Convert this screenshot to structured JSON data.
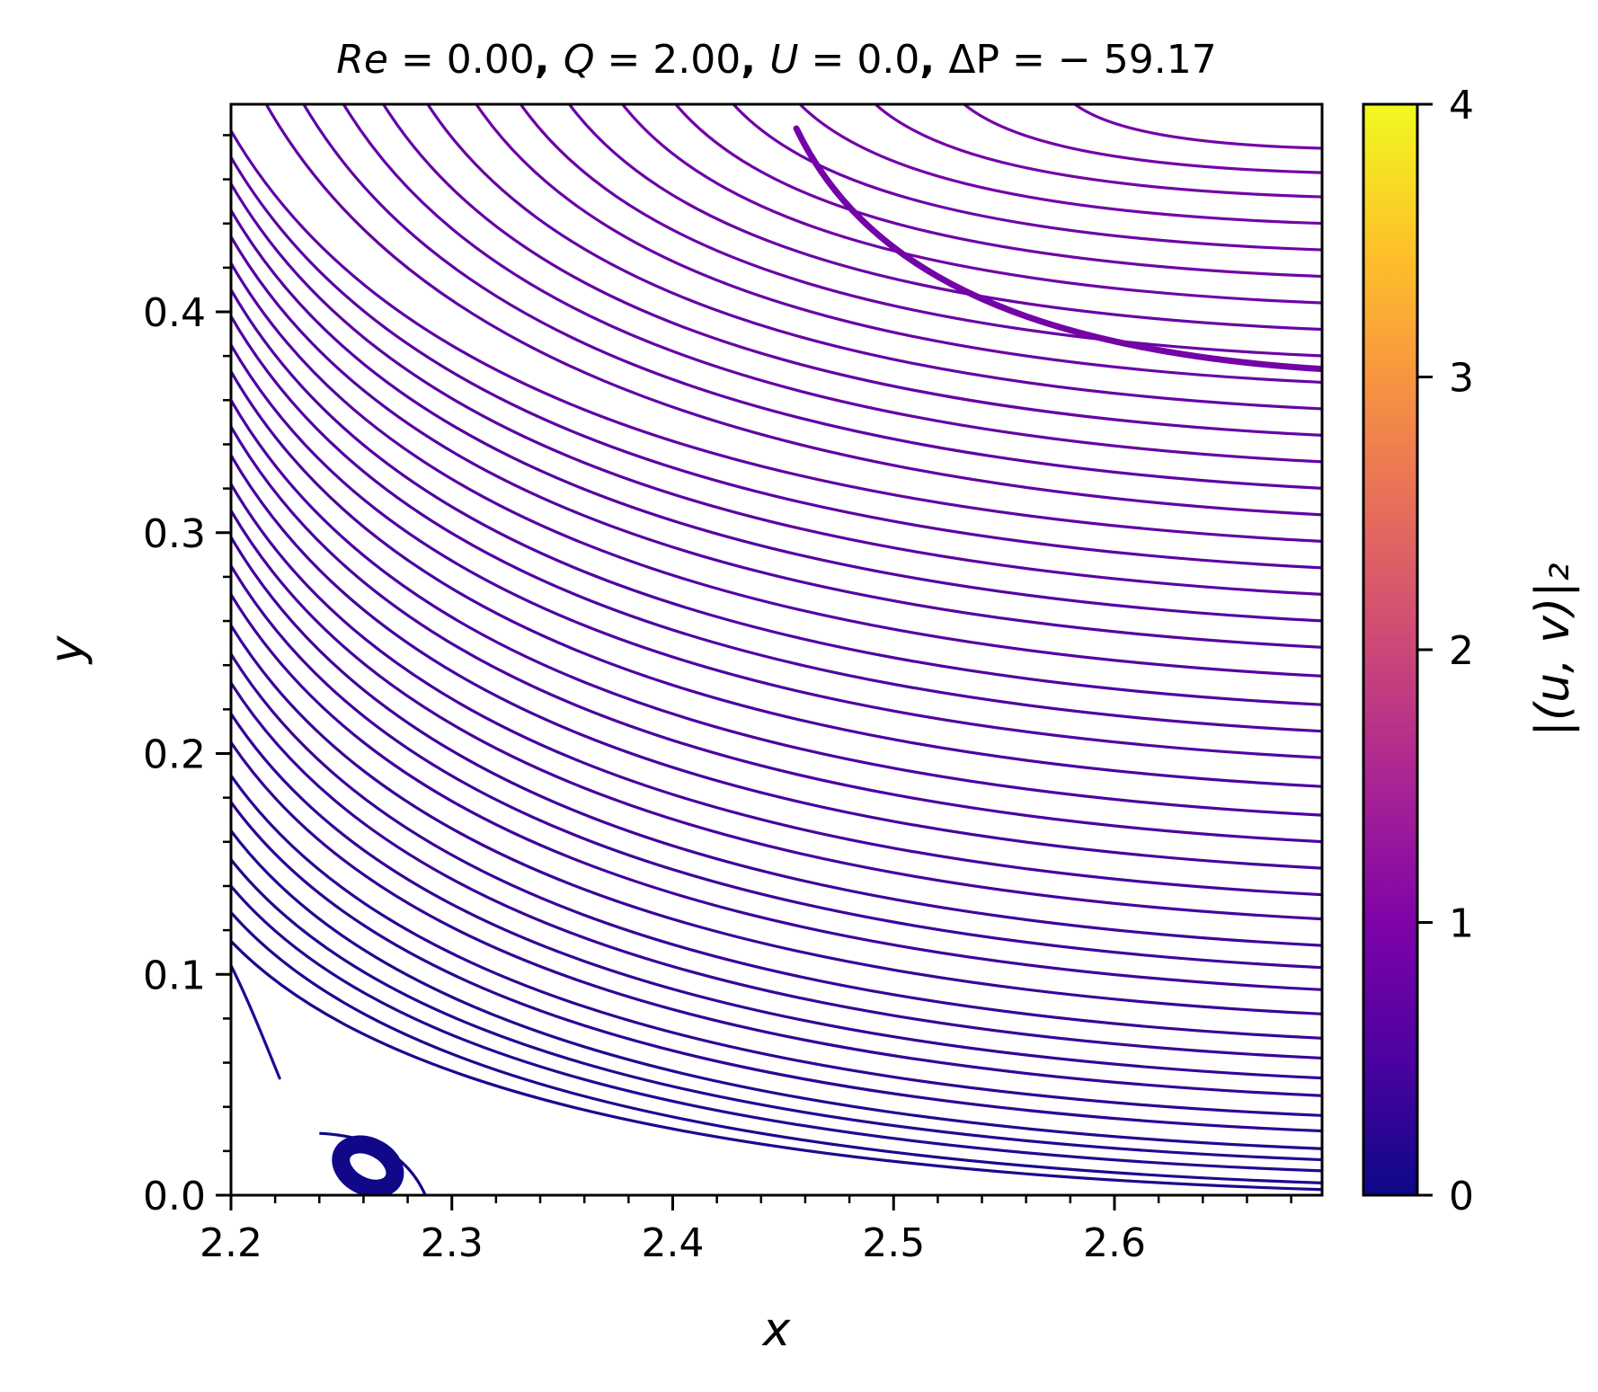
{
  "chart_data": {
    "type": "streamline",
    "title": "Re = 0.00, Q = 2.00, U = 0.0, ΔP = − 59.17",
    "title_parts": [
      {
        "text": "Re",
        "italic": true
      },
      {
        "text": " = 0.00",
        "italic": false
      },
      {
        "text": ", ",
        "italic": false,
        "bold": true
      },
      {
        "text": "Q",
        "italic": true
      },
      {
        "text": " = 2.00",
        "italic": false
      },
      {
        "text": ", ",
        "italic": false,
        "bold": true
      },
      {
        "text": "U",
        "italic": true
      },
      {
        "text": " = 0.0",
        "italic": false
      },
      {
        "text": ", ",
        "italic": false,
        "bold": true
      },
      {
        "text": "ΔP",
        "italic": false
      },
      {
        "text": " = − 59.17",
        "italic": false
      }
    ],
    "xlabel": "x",
    "ylabel": "y",
    "xlim": [
      2.2,
      2.694
    ],
    "ylim": [
      0.0,
      0.494
    ],
    "xticks": [
      2.2,
      2.3,
      2.4,
      2.5,
      2.6
    ],
    "xtick_labels": [
      "2.2",
      "2.3",
      "2.4",
      "2.5",
      "2.6"
    ],
    "yticks": [
      0.0,
      0.1,
      0.2,
      0.3,
      0.4
    ],
    "ytick_labels": [
      "0.0",
      "0.1",
      "0.2",
      "0.3",
      "0.4"
    ],
    "x_minor_step": 0.02,
    "y_minor_step": 0.02,
    "grid": false,
    "colormap": "plasma",
    "colorbar": {
      "label": "|(u, v)|₂",
      "min": 0,
      "max": 4,
      "ticks": [
        0,
        1,
        2,
        3,
        4
      ],
      "tick_labels": [
        "0",
        "1",
        "2",
        "3",
        "4"
      ]
    },
    "streamlines": [
      {
        "y_left": 0.104,
        "end_x": 2.222,
        "end_y": 0.053,
        "speed": 0.2
      },
      {
        "y_left": 0.115,
        "y_right": 0.0025,
        "speed": 0.15
      },
      {
        "y_left": 0.128,
        "y_right": 0.0055,
        "speed": 0.15
      },
      {
        "y_left": 0.14,
        "y_right": 0.011,
        "speed": 0.2
      },
      {
        "y_left": 0.152,
        "y_right": 0.016,
        "speed": 0.2
      },
      {
        "y_left": 0.165,
        "y_right": 0.021,
        "speed": 0.2
      },
      {
        "y_left": 0.178,
        "y_right": 0.029,
        "speed": 0.25
      },
      {
        "y_left": 0.19,
        "y_right": 0.036,
        "speed": 0.25
      },
      {
        "y_left": 0.205,
        "y_right": 0.045,
        "speed": 0.3
      },
      {
        "y_left": 0.218,
        "y_right": 0.053,
        "speed": 0.3
      },
      {
        "y_left": 0.232,
        "y_right": 0.062,
        "speed": 0.35
      },
      {
        "y_left": 0.245,
        "y_right": 0.071,
        "speed": 0.35
      },
      {
        "y_left": 0.258,
        "y_right": 0.082,
        "speed": 0.35
      },
      {
        "y_left": 0.272,
        "y_right": 0.093,
        "speed": 0.4
      },
      {
        "y_left": 0.285,
        "y_right": 0.103,
        "speed": 0.4
      },
      {
        "y_left": 0.298,
        "y_right": 0.113,
        "speed": 0.4
      },
      {
        "y_left": 0.31,
        "y_right": 0.125,
        "speed": 0.45
      },
      {
        "y_left": 0.322,
        "y_right": 0.136,
        "speed": 0.45
      },
      {
        "y_left": 0.335,
        "y_right": 0.148,
        "speed": 0.45
      },
      {
        "y_left": 0.348,
        "y_right": 0.16,
        "speed": 0.5
      },
      {
        "y_left": 0.36,
        "y_right": 0.172,
        "speed": 0.5
      },
      {
        "y_left": 0.373,
        "y_right": 0.185,
        "speed": 0.5
      },
      {
        "y_left": 0.385,
        "y_right": 0.198,
        "speed": 0.55
      },
      {
        "y_left": 0.398,
        "y_right": 0.21,
        "speed": 0.55
      },
      {
        "y_left": 0.41,
        "y_right": 0.222,
        "speed": 0.55
      },
      {
        "y_left": 0.422,
        "y_right": 0.235,
        "speed": 0.6
      },
      {
        "y_left": 0.434,
        "y_right": 0.248,
        "speed": 0.6
      },
      {
        "y_left": 0.446,
        "y_right": 0.26,
        "speed": 0.6
      },
      {
        "y_left": 0.458,
        "y_right": 0.272,
        "speed": 0.65
      },
      {
        "y_left": 0.47,
        "y_right": 0.284,
        "speed": 0.65
      },
      {
        "y_left": 0.482,
        "y_right": 0.296,
        "speed": 0.7
      },
      {
        "x_top": 2.215,
        "y_right": 0.308,
        "speed": 0.7
      },
      {
        "x_top": 2.232,
        "y_right": 0.32,
        "speed": 0.7
      },
      {
        "x_top": 2.25,
        "y_right": 0.332,
        "speed": 0.75
      },
      {
        "x_top": 2.268,
        "y_right": 0.344,
        "speed": 0.75
      },
      {
        "x_top": 2.288,
        "y_right": 0.356,
        "speed": 0.75
      },
      {
        "x_top": 2.31,
        "y_right": 0.368,
        "speed": 0.8
      },
      {
        "x_top": 2.33,
        "y_right": 0.38,
        "speed": 0.8
      },
      {
        "x_top": 2.352,
        "y_right": 0.392,
        "speed": 0.8
      },
      {
        "x_top": 2.376,
        "y_right": 0.404,
        "speed": 0.85
      },
      {
        "x_top": 2.4,
        "y_right": 0.416,
        "speed": 0.85
      },
      {
        "x_top": 2.426,
        "y_right": 0.428,
        "speed": 0.85
      },
      {
        "x_top": 2.456,
        "y_right": 0.44,
        "speed": 0.9
      },
      {
        "x_top": 2.49,
        "y_right": 0.452,
        "speed": 0.9
      },
      {
        "x_top": 2.53,
        "y_right": 0.463,
        "speed": 0.9
      },
      {
        "x_top": 2.58,
        "y_right": 0.474,
        "speed": 0.9
      },
      {
        "start_x": 2.456,
        "start_y": 0.483,
        "y_right": 0.374,
        "speed": 0.9,
        "heavy": true
      }
    ],
    "eddy": {
      "center_x": 2.262,
      "center_y": 0.013,
      "rx": 0.013,
      "ry": 0.009,
      "speed": 0.02,
      "tail_start": [
        2.24,
        0.028
      ],
      "tail_end": [
        2.288,
        0.0
      ]
    }
  }
}
